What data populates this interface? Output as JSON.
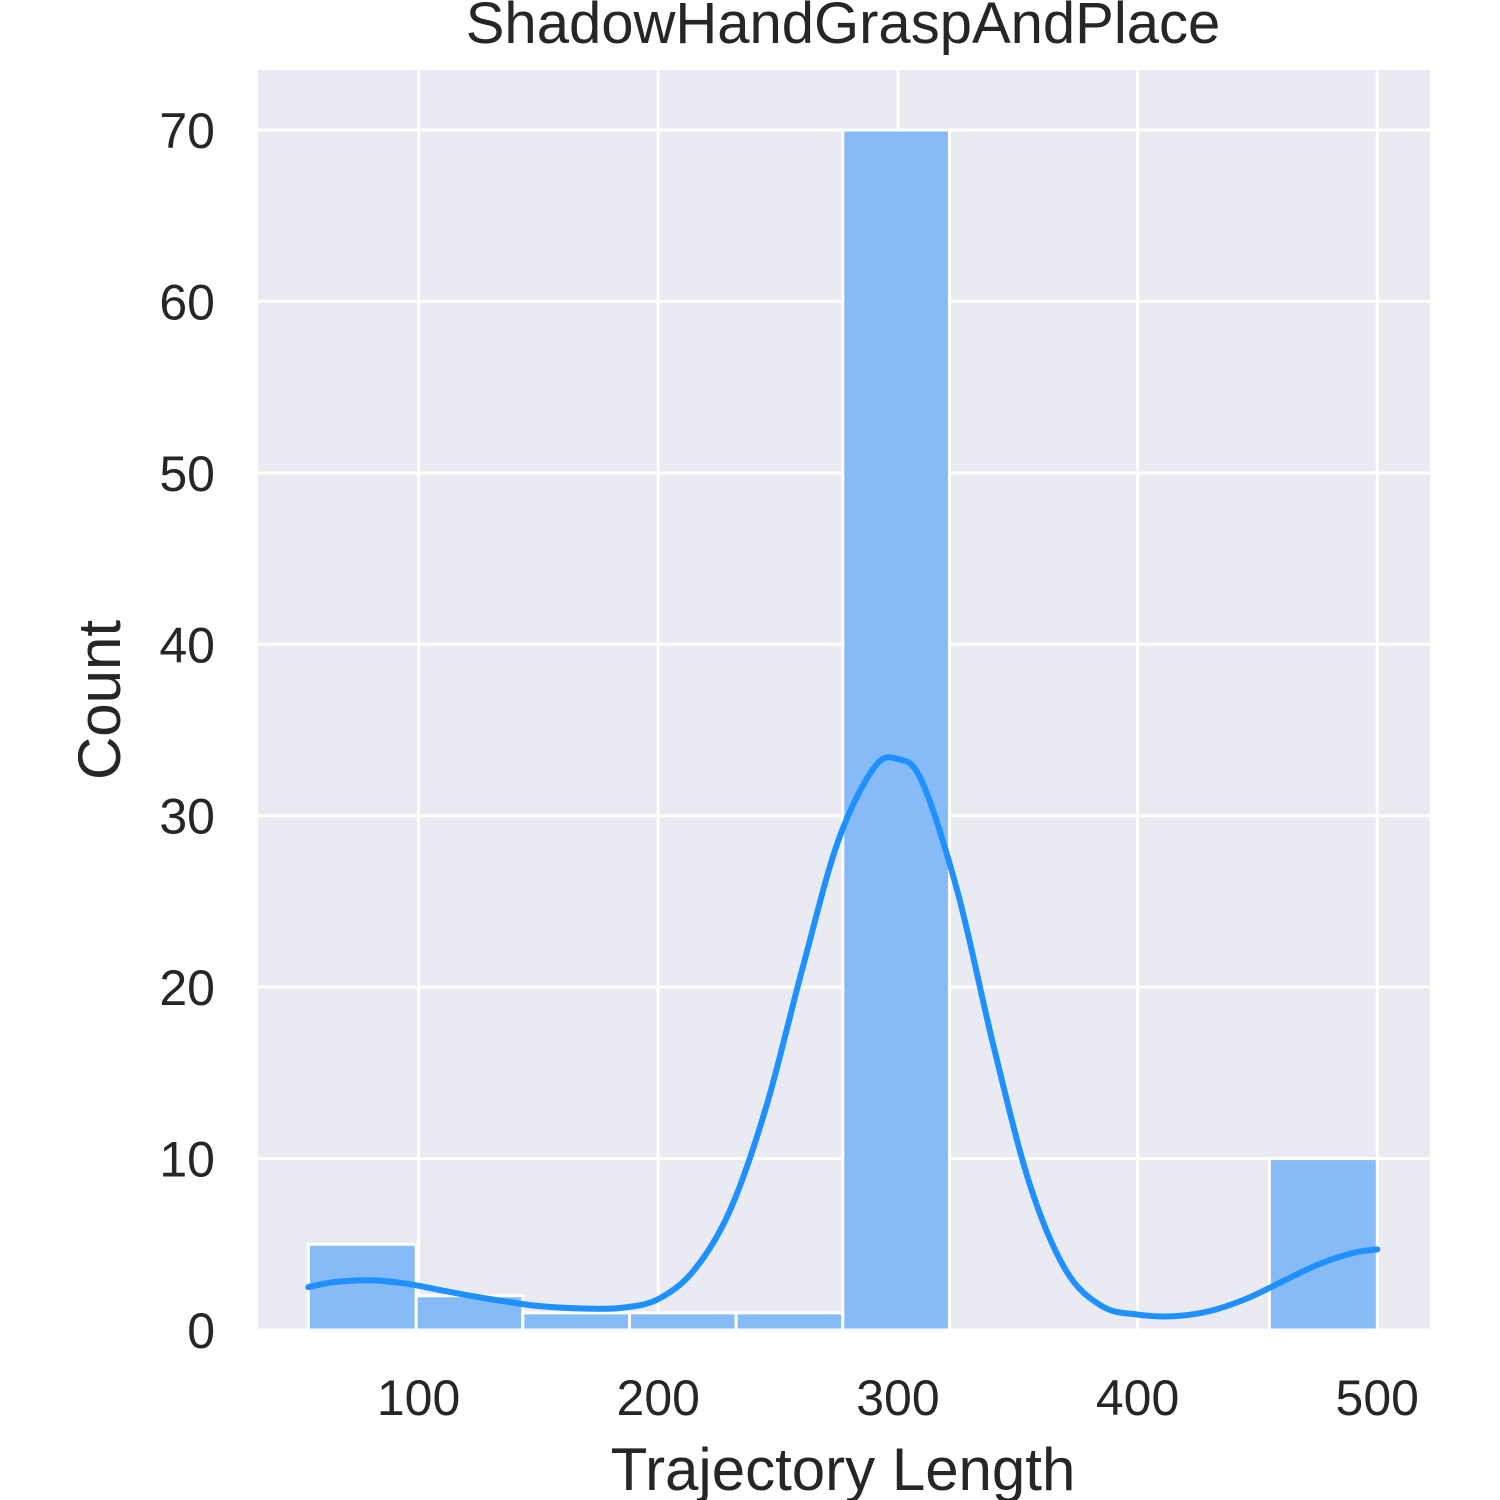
{
  "chart_data": {
    "type": "bar",
    "subtype": "histogram-with-kde",
    "title": "ShadowHandGraspAndPlace",
    "xlabel": "Trajectory Length",
    "ylabel": "Count",
    "xlim": [
      33,
      522
    ],
    "ylim": [
      0,
      73.5
    ],
    "x_ticks": [
      100,
      200,
      300,
      400,
      500
    ],
    "y_ticks": [
      0,
      10,
      20,
      30,
      40,
      50,
      60,
      70
    ],
    "grid": true,
    "legend": "none",
    "bins": [
      {
        "start": 54,
        "end": 99,
        "count": 5
      },
      {
        "start": 99,
        "end": 143.5,
        "count": 2
      },
      {
        "start": 143.5,
        "end": 188,
        "count": 1
      },
      {
        "start": 188,
        "end": 232.5,
        "count": 1
      },
      {
        "start": 232.5,
        "end": 277,
        "count": 1
      },
      {
        "start": 277,
        "end": 321.5,
        "count": 70
      },
      {
        "start": 321.5,
        "end": 366,
        "count": 0
      },
      {
        "start": 366,
        "end": 410.5,
        "count": 0
      },
      {
        "start": 410.5,
        "end": 455,
        "count": 0
      },
      {
        "start": 455,
        "end": 500,
        "count": 10
      }
    ],
    "kde": {
      "x": [
        54,
        65,
        80,
        95,
        110,
        130,
        150,
        170,
        185,
        200,
        215,
        230,
        245,
        260,
        275,
        290,
        300,
        310,
        325,
        340,
        355,
        370,
        385,
        400,
        415,
        430,
        445,
        460,
        475,
        490,
        500
      ],
      "y": [
        2.5,
        2.8,
        2.9,
        2.7,
        2.3,
        1.8,
        1.4,
        1.25,
        1.3,
        1.8,
        3.5,
        7.0,
        13.0,
        21.0,
        28.5,
        32.8,
        33.3,
        32.0,
        25.5,
        16.5,
        8.5,
        3.5,
        1.4,
        0.9,
        0.8,
        1.1,
        1.8,
        2.8,
        3.8,
        4.5,
        4.7
      ]
    },
    "colors": {
      "background": "#eaeaf2",
      "grid": "#ffffff",
      "bar_fill": "#86bbf8",
      "bar_edge": "#ffffff",
      "kde_line": "#1e90ff",
      "text": "#262626"
    }
  }
}
